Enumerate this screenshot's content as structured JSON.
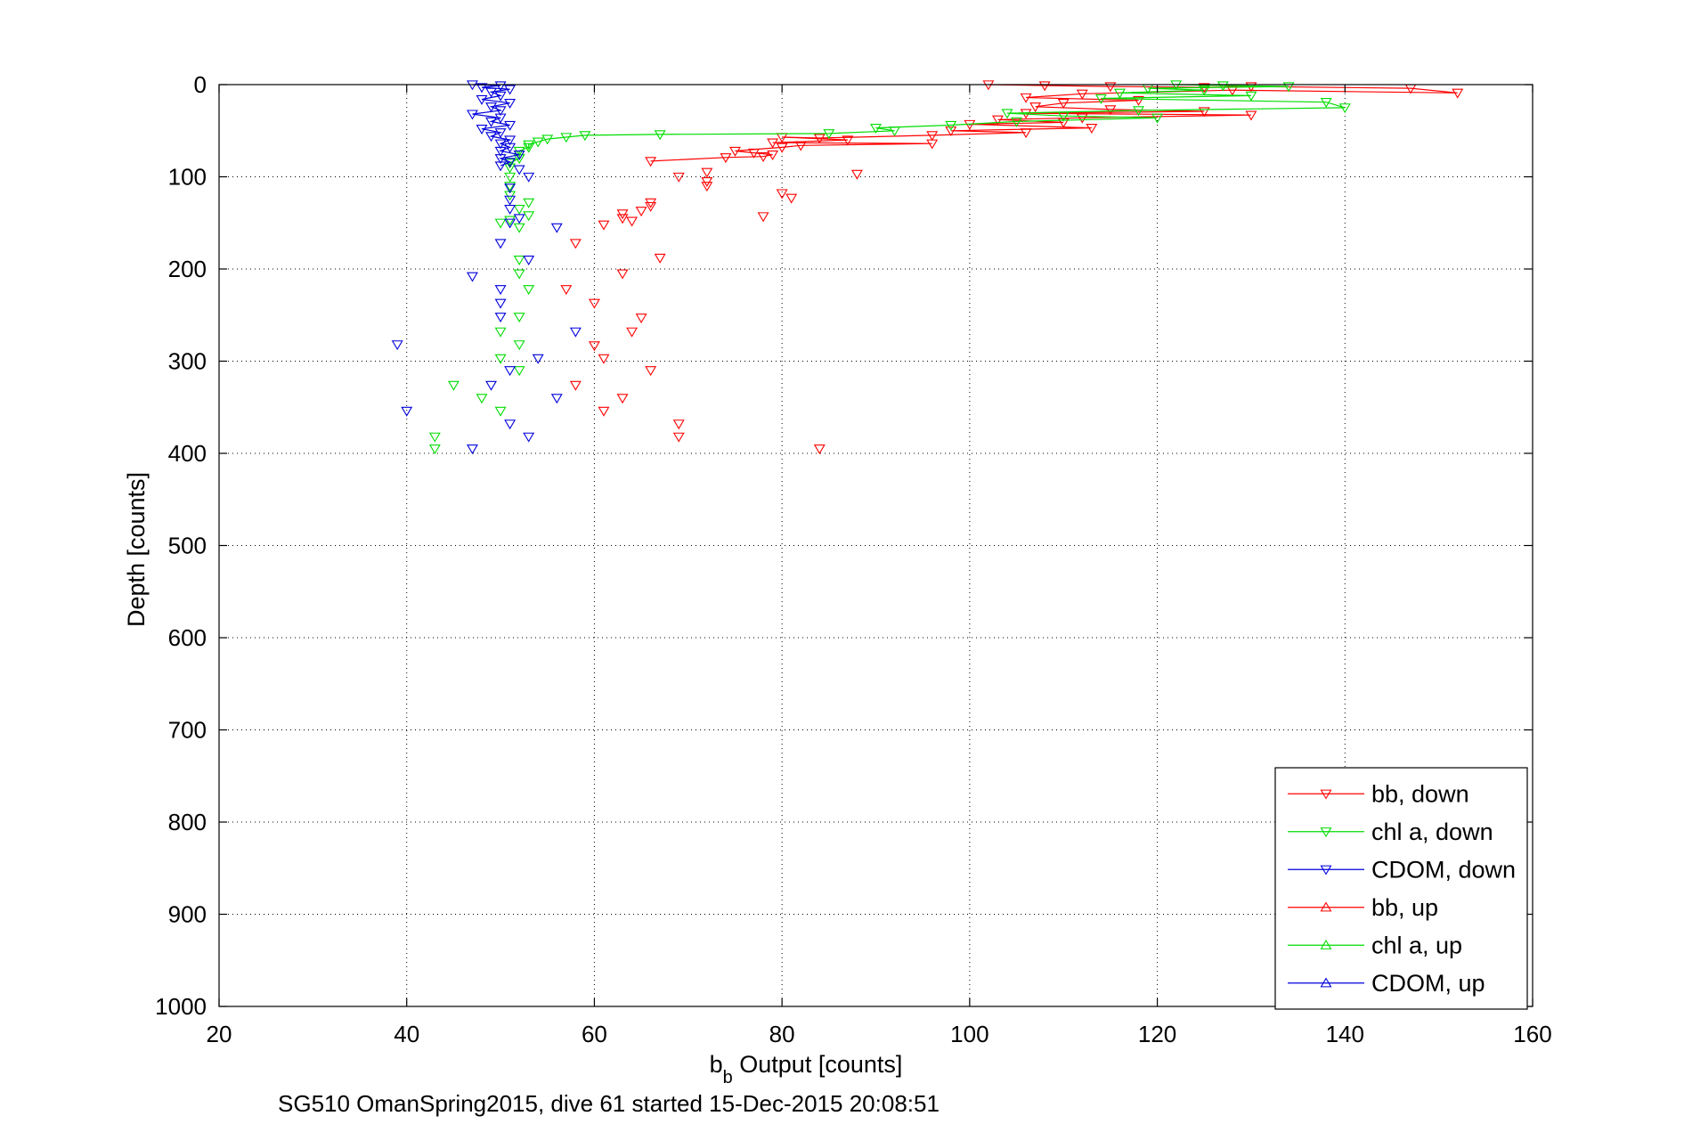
{
  "chart_data": {
    "type": "scatter",
    "xlabel_main": "b",
    "xlabel_sub": "b",
    "xlabel_rest": " Output [counts]",
    "ylabel": "Depth [counts]",
    "caption": "SG510 OmanSpring2015, dive 61 started 15-Dec-2015 20:08:51",
    "xlim": [
      20,
      160
    ],
    "ylim": [
      0,
      1000
    ],
    "y_reversed": true,
    "grid": true,
    "legend_placement": "bottom-right",
    "x_ticks": [
      "20",
      "40",
      "60",
      "80",
      "100",
      "120",
      "140",
      "160"
    ],
    "y_ticks": [
      "0",
      "100",
      "200",
      "300",
      "400",
      "500",
      "600",
      "700",
      "800",
      "900",
      "1000"
    ],
    "series": [
      {
        "name": "bb, down",
        "color": "#ff0000",
        "marker": "down",
        "line": true,
        "points": [
          [
            102,
            0
          ],
          [
            108,
            1
          ],
          [
            115,
            2
          ],
          [
            125,
            3
          ],
          [
            130,
            2
          ],
          [
            147,
            4
          ],
          [
            152,
            9
          ],
          [
            128,
            6
          ],
          [
            112,
            10
          ],
          [
            106,
            14
          ],
          [
            118,
            17
          ],
          [
            110,
            20
          ],
          [
            107,
            24
          ],
          [
            115,
            27
          ],
          [
            125,
            29
          ],
          [
            106,
            31
          ],
          [
            130,
            33
          ],
          [
            112,
            36
          ],
          [
            103,
            38
          ],
          [
            110,
            41
          ],
          [
            100,
            43
          ],
          [
            113,
            47
          ],
          [
            98,
            50
          ],
          [
            106,
            52
          ],
          [
            96,
            55
          ],
          [
            84,
            58
          ],
          [
            80,
            57
          ],
          [
            87,
            60
          ],
          [
            79,
            63
          ],
          [
            96,
            64
          ],
          [
            82,
            66
          ],
          [
            80,
            68
          ],
          [
            75,
            72
          ],
          [
            77,
            74
          ],
          [
            79,
            76
          ],
          [
            78,
            78
          ],
          [
            74,
            79
          ],
          [
            66,
            83
          ]
        ]
      },
      {
        "name": "chl a, down",
        "color": "#00dd00",
        "marker": "down",
        "line": true,
        "points": [
          [
            122,
            0
          ],
          [
            127,
            1
          ],
          [
            134,
            2
          ],
          [
            119,
            4
          ],
          [
            125,
            6
          ],
          [
            116,
            9
          ],
          [
            130,
            12
          ],
          [
            114,
            15
          ],
          [
            138,
            19
          ],
          [
            140,
            25
          ],
          [
            118,
            28
          ],
          [
            104,
            31
          ],
          [
            110,
            34
          ],
          [
            120,
            36
          ],
          [
            105,
            40
          ],
          [
            98,
            44
          ],
          [
            90,
            47
          ],
          [
            92,
            50
          ],
          [
            85,
            53
          ],
          [
            67,
            54
          ],
          [
            59,
            55
          ],
          [
            57,
            57
          ],
          [
            55,
            59
          ],
          [
            54,
            62
          ],
          [
            53,
            65
          ],
          [
            53,
            68
          ],
          [
            52,
            72
          ],
          [
            52,
            76
          ],
          [
            52,
            80
          ],
          [
            51,
            85
          ],
          [
            51,
            90
          ]
        ]
      },
      {
        "name": "CDOM, down",
        "color": "#0000dd",
        "marker": "down",
        "line": true,
        "points": [
          [
            47,
            0
          ],
          [
            50,
            1
          ],
          [
            48,
            3
          ],
          [
            51,
            5
          ],
          [
            49,
            8
          ],
          [
            50,
            12
          ],
          [
            48,
            16
          ],
          [
            51,
            20
          ],
          [
            49,
            24
          ],
          [
            50,
            28
          ],
          [
            47,
            32
          ],
          [
            50,
            36
          ],
          [
            49,
            40
          ],
          [
            51,
            44
          ],
          [
            48,
            48
          ],
          [
            50,
            52
          ],
          [
            49,
            56
          ],
          [
            51,
            60
          ],
          [
            50,
            64
          ],
          [
            51,
            68
          ],
          [
            50,
            72
          ],
          [
            52,
            76
          ],
          [
            50,
            80
          ],
          [
            51,
            84
          ],
          [
            50,
            88
          ]
        ]
      },
      {
        "name": "bb, up",
        "color": "#ff0000",
        "marker": "up",
        "line": true,
        "points": []
      },
      {
        "name": "chl a, up",
        "color": "#00dd00",
        "marker": "up",
        "line": true,
        "points": []
      },
      {
        "name": "CDOM, up",
        "color": "#0000dd",
        "marker": "up",
        "line": true,
        "points": []
      },
      {
        "name": "",
        "color": "#ff0000",
        "marker": "down",
        "line": false,
        "points": [
          [
            72,
            95
          ],
          [
            88,
            97
          ],
          [
            69,
            100
          ],
          [
            72,
            105
          ],
          [
            72,
            110
          ],
          [
            80,
            118
          ],
          [
            81,
            123
          ],
          [
            66,
            128
          ],
          [
            66,
            132
          ],
          [
            65,
            137
          ],
          [
            63,
            140
          ],
          [
            78,
            143
          ],
          [
            63,
            145
          ],
          [
            64,
            148
          ],
          [
            61,
            152
          ],
          [
            67,
            188
          ],
          [
            63,
            205
          ],
          [
            58,
            172
          ],
          [
            57,
            222
          ],
          [
            60,
            237
          ],
          [
            65,
            253
          ],
          [
            64,
            268
          ],
          [
            60,
            283
          ],
          [
            61,
            297
          ],
          [
            66,
            310
          ],
          [
            58,
            326
          ],
          [
            63,
            340
          ],
          [
            61,
            354
          ],
          [
            69,
            368
          ],
          [
            69,
            382
          ],
          [
            84,
            395
          ]
        ]
      },
      {
        "name": "",
        "color": "#00dd00",
        "marker": "down",
        "line": false,
        "points": [
          [
            51,
            100
          ],
          [
            51,
            110
          ],
          [
            51,
            120
          ],
          [
            53,
            128
          ],
          [
            52,
            135
          ],
          [
            53,
            142
          ],
          [
            51,
            147
          ],
          [
            50,
            150
          ],
          [
            52,
            155
          ],
          [
            52,
            190
          ],
          [
            52,
            205
          ],
          [
            53,
            222
          ],
          [
            52,
            252
          ],
          [
            50,
            268
          ],
          [
            52,
            282
          ],
          [
            50,
            297
          ],
          [
            52,
            310
          ],
          [
            45,
            326
          ],
          [
            48,
            340
          ],
          [
            50,
            354
          ],
          [
            43,
            382
          ],
          [
            43,
            395
          ]
        ]
      },
      {
        "name": "CDOM, down",
        "color": "#0000dd",
        "marker": "down",
        "line": false,
        "points": [
          [
            52,
            92
          ],
          [
            53,
            100
          ],
          [
            51,
            112
          ],
          [
            51,
            125
          ],
          [
            51,
            135
          ],
          [
            52,
            145
          ],
          [
            51,
            150
          ],
          [
            56,
            155
          ],
          [
            50,
            172
          ],
          [
            53,
            190
          ],
          [
            47,
            208
          ],
          [
            50,
            222
          ],
          [
            50,
            237
          ],
          [
            50,
            252
          ],
          [
            58,
            268
          ],
          [
            39,
            282
          ],
          [
            54,
            297
          ],
          [
            51,
            310
          ],
          [
            49,
            326
          ],
          [
            56,
            340
          ],
          [
            40,
            354
          ],
          [
            51,
            368
          ],
          [
            53,
            382
          ],
          [
            47,
            395
          ]
        ]
      }
    ]
  }
}
